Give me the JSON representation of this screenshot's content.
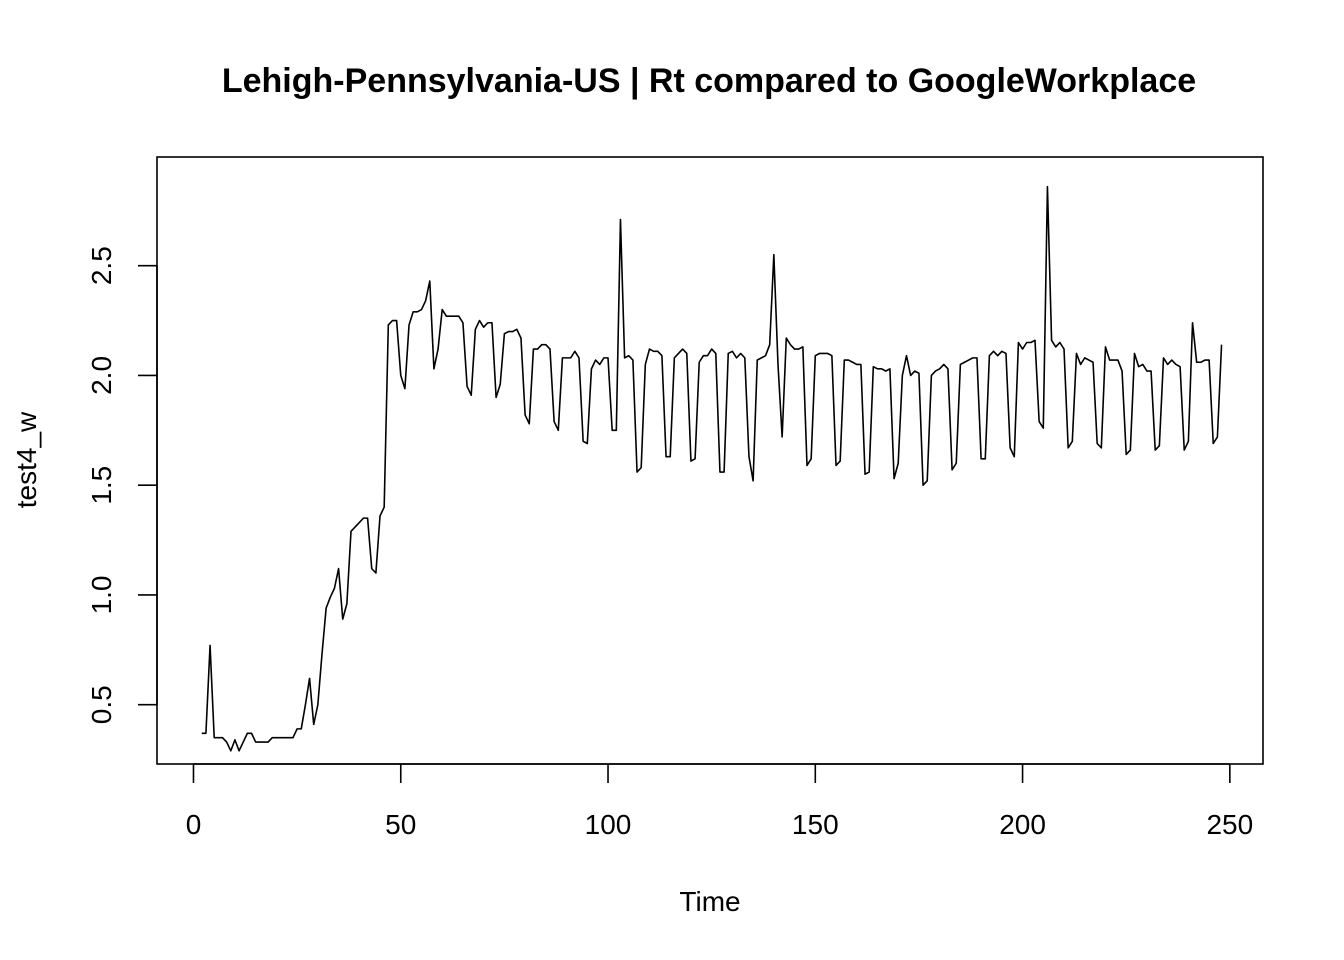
{
  "chart_data": {
    "type": "line",
    "title": "Lehigh-Pennsylvania-US | Rt compared to GoogleWorkplace",
    "xlabel": "Time",
    "ylabel": "test4_w",
    "xlim": [
      -8.8,
      258
    ],
    "ylim": [
      0.23,
      2.995
    ],
    "xticks": [
      0,
      50,
      100,
      150,
      200,
      250
    ],
    "xtick_labels": [
      "0",
      "50",
      "100",
      "150",
      "200",
      "250"
    ],
    "yticks": [
      0.5,
      1.0,
      1.5,
      2.0,
      2.5
    ],
    "ytick_labels": [
      "0.5",
      "1.0",
      "1.5",
      "2.0",
      "2.5"
    ],
    "grid": false,
    "legend": "none",
    "series": [
      {
        "color": "#000000",
        "x": [
          2,
          3,
          4,
          5,
          6,
          7,
          8,
          9,
          10,
          11,
          12,
          13,
          14,
          15,
          16,
          17,
          18,
          19,
          20,
          21,
          22,
          23,
          24,
          25,
          26,
          27,
          28,
          29,
          30,
          31,
          32,
          33,
          34,
          35,
          36,
          37,
          38,
          39,
          40,
          41,
          42,
          43,
          44,
          45,
          46,
          47,
          48,
          49,
          50,
          51,
          52,
          53,
          54,
          55,
          56,
          57,
          58,
          59,
          60,
          61,
          62,
          63,
          64,
          65,
          66,
          67,
          68,
          69,
          70,
          71,
          72,
          73,
          74,
          75,
          76,
          77,
          78,
          79,
          80,
          81,
          82,
          83,
          84,
          85,
          86,
          87,
          88,
          89,
          90,
          91,
          92,
          93,
          94,
          95,
          96,
          97,
          98,
          99,
          100,
          101,
          102,
          103,
          104,
          105,
          106,
          107,
          108,
          109,
          110,
          111,
          112,
          113,
          114,
          115,
          116,
          117,
          118,
          119,
          120,
          121,
          122,
          123,
          124,
          125,
          126,
          127,
          128,
          129,
          130,
          131,
          132,
          133,
          134,
          135,
          136,
          137,
          138,
          139,
          140,
          141,
          142,
          143,
          144,
          145,
          146,
          147,
          148,
          149,
          150,
          151,
          152,
          153,
          154,
          155,
          156,
          157,
          158,
          159,
          160,
          161,
          162,
          163,
          164,
          165,
          166,
          167,
          168,
          169,
          170,
          171,
          172,
          173,
          174,
          175,
          176,
          177,
          178,
          179,
          180,
          181,
          182,
          183,
          184,
          185,
          186,
          187,
          188,
          189,
          190,
          191,
          192,
          193,
          194,
          195,
          196,
          197,
          198,
          199,
          200,
          201,
          202,
          203,
          204,
          205,
          206,
          207,
          208,
          209,
          210,
          211,
          212,
          213,
          214,
          215,
          216,
          217,
          218,
          219,
          220,
          221,
          222,
          223,
          224,
          225,
          226,
          227,
          228,
          229,
          230,
          231,
          232,
          233,
          234,
          235,
          236,
          237,
          238,
          239,
          240,
          241,
          242,
          243,
          244,
          245,
          246,
          247,
          248
        ],
        "y": [
          0.37,
          0.37,
          0.77,
          0.35,
          0.35,
          0.35,
          0.33,
          0.29,
          0.34,
          0.29,
          0.33,
          0.37,
          0.37,
          0.33,
          0.33,
          0.33,
          0.33,
          0.35,
          0.35,
          0.35,
          0.35,
          0.35,
          0.35,
          0.39,
          0.39,
          0.5,
          0.62,
          0.41,
          0.5,
          0.73,
          0.94,
          0.99,
          1.03,
          1.12,
          0.89,
          0.96,
          1.29,
          1.31,
          1.33,
          1.35,
          1.35,
          1.12,
          1.1,
          1.36,
          1.4,
          2.23,
          2.25,
          2.25,
          2.0,
          1.94,
          2.23,
          2.29,
          2.29,
          2.3,
          2.34,
          2.43,
          2.03,
          2.12,
          2.3,
          2.27,
          2.27,
          2.27,
          2.27,
          2.24,
          1.95,
          1.91,
          2.21,
          2.25,
          2.22,
          2.24,
          2.24,
          1.9,
          1.96,
          2.19,
          2.2,
          2.2,
          2.21,
          2.17,
          1.82,
          1.78,
          2.12,
          2.12,
          2.14,
          2.14,
          2.12,
          1.79,
          1.75,
          2.08,
          2.08,
          2.08,
          2.11,
          2.08,
          1.7,
          1.69,
          2.03,
          2.07,
          2.05,
          2.08,
          2.08,
          1.75,
          1.75,
          2.71,
          2.08,
          2.09,
          2.07,
          1.56,
          1.58,
          2.05,
          2.12,
          2.11,
          2.11,
          2.09,
          1.63,
          1.63,
          2.08,
          2.1,
          2.12,
          2.1,
          1.61,
          1.62,
          2.06,
          2.09,
          2.09,
          2.12,
          2.1,
          1.56,
          1.56,
          2.1,
          2.11,
          2.08,
          2.1,
          2.08,
          1.63,
          1.52,
          2.07,
          2.08,
          2.09,
          2.14,
          2.55,
          2.05,
          1.72,
          2.17,
          2.14,
          2.12,
          2.12,
          2.13,
          1.59,
          1.62,
          2.09,
          2.1,
          2.1,
          2.1,
          2.09,
          1.59,
          1.61,
          2.07,
          2.07,
          2.06,
          2.05,
          2.05,
          1.55,
          1.56,
          2.04,
          2.03,
          2.03,
          2.02,
          2.03,
          1.53,
          1.6,
          2.0,
          2.09,
          2.0,
          2.02,
          2.01,
          1.5,
          1.52,
          2.0,
          2.02,
          2.03,
          2.05,
          2.03,
          1.57,
          1.6,
          2.05,
          2.06,
          2.07,
          2.08,
          2.08,
          1.62,
          1.62,
          2.09,
          2.11,
          2.09,
          2.11,
          2.1,
          1.67,
          1.63,
          2.15,
          2.12,
          2.15,
          2.15,
          2.16,
          1.79,
          1.76,
          2.86,
          2.16,
          2.13,
          2.15,
          2.12,
          1.67,
          1.7,
          2.1,
          2.05,
          2.08,
          2.07,
          2.06,
          1.69,
          1.67,
          2.13,
          2.07,
          2.07,
          2.07,
          2.02,
          1.64,
          1.66,
          2.1,
          2.04,
          2.05,
          2.02,
          2.02,
          1.66,
          1.68,
          2.08,
          2.05,
          2.07,
          2.05,
          2.04,
          1.66,
          1.7,
          2.24,
          2.06,
          2.06,
          2.07,
          2.07,
          1.69,
          1.72,
          2.14
        ]
      }
    ]
  }
}
